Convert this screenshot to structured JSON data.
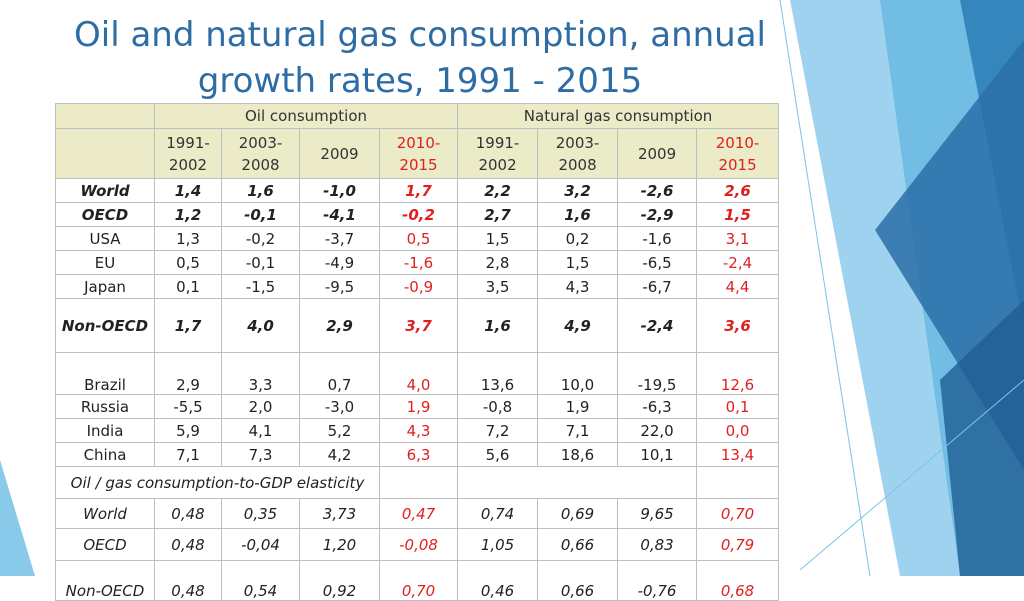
{
  "title_line1": "Oil and natural gas consumption, annual",
  "title_line2": "growth rates, 1991 - 2015",
  "table": {
    "group_oil": "Oil consumption",
    "group_gas": "Natural gas consumption",
    "periods": [
      "1991-\n2002",
      "2003-\n2008",
      "2009",
      "2010-\n2015",
      "1991-\n2002",
      "2003-\n2008",
      "2009",
      "2010-\n2015"
    ],
    "rows": [
      {
        "label": "World",
        "values": [
          "1,4",
          "1,6",
          "-1,0",
          "1,7",
          "2,2",
          "3,2",
          "-2,6",
          "2,6"
        ]
      },
      {
        "label": "OECD",
        "values": [
          "1,2",
          "-0,1",
          "-4,1",
          "-0,2",
          "2,7",
          "1,6",
          "-2,9",
          "1,5"
        ]
      },
      {
        "label": "USA",
        "values": [
          "1,3",
          "-0,2",
          "-3,7",
          "0,5",
          "1,5",
          "0,2",
          "-1,6",
          "3,1"
        ]
      },
      {
        "label": "EU",
        "values": [
          "0,5",
          "-0,1",
          "-4,9",
          "-1,6",
          "2,8",
          "1,5",
          "-6,5",
          "-2,4"
        ]
      },
      {
        "label": "Japan",
        "values": [
          "0,1",
          "-1,5",
          "-9,5",
          "-0,9",
          "3,5",
          "4,3",
          "-6,7",
          "4,4"
        ]
      },
      {
        "label": "Non-OECD",
        "values": [
          "1,7",
          "4,0",
          "2,9",
          "3,7",
          "1,6",
          "4,9",
          "-2,4",
          "3,6"
        ]
      },
      {
        "label": "Brazil",
        "values": [
          "2,9",
          "3,3",
          "0,7",
          "4,0",
          "13,6",
          "10,0",
          "-19,5",
          "12,6"
        ]
      },
      {
        "label": "Russia",
        "values": [
          "-5,5",
          "2,0",
          "-3,0",
          "1,9",
          "-0,8",
          "1,9",
          "-6,3",
          "0,1"
        ]
      },
      {
        "label": "India",
        "values": [
          "5,9",
          "4,1",
          "5,2",
          "4,3",
          "7,2",
          "7,1",
          "22,0",
          "0,0"
        ]
      },
      {
        "label": "China",
        "values": [
          "7,1",
          "7,3",
          "4,2",
          "6,3",
          "5,6",
          "18,6",
          "10,1",
          "13,4"
        ]
      }
    ],
    "elasticity_label": "Oil / gas consumption-to-GDP  elasticity",
    "elasticity_rows": [
      {
        "label": "World",
        "values": [
          "0,48",
          "0,35",
          "3,73",
          "0,47",
          "0,74",
          "0,69",
          "9,65",
          "0,70"
        ]
      },
      {
        "label": "OECD",
        "values": [
          "0,48",
          "-0,04",
          "1,20",
          "-0,08",
          "1,05",
          "0,66",
          "0,83",
          "0,79"
        ]
      },
      {
        "label": "Non-OECD",
        "values": [
          "0,48",
          "0,54",
          "0,92",
          "0,70",
          "0,46",
          "0,66",
          "-0,76",
          "0,68"
        ]
      }
    ]
  },
  "colors": {
    "title": "#2e6da4",
    "header_bg": "#ebebc8",
    "highlight": "#e02020"
  }
}
